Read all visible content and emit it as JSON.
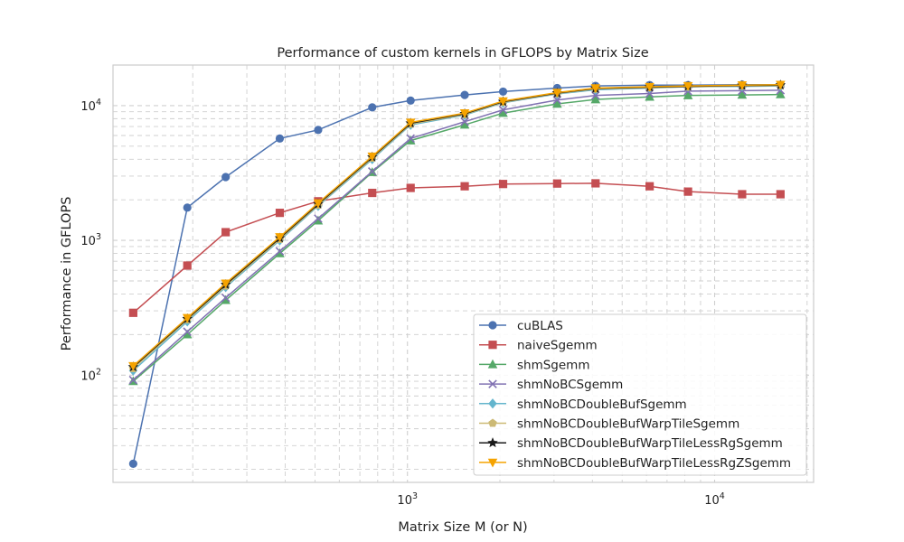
{
  "chart_data": {
    "type": "line",
    "title": "Performance of custom kernels in GFLOPS by Matrix Size",
    "xlabel": "Matrix Size M (or N)",
    "ylabel": "Performance in GFLOPS",
    "xscale": "log",
    "yscale": "log",
    "xlim": [
      110,
      21000
    ],
    "ylim": [
      16,
      20000
    ],
    "x_ticks": [
      {
        "value": 1000,
        "base": "10",
        "exp": "3"
      },
      {
        "value": 10000,
        "base": "10",
        "exp": "4"
      }
    ],
    "y_ticks": [
      {
        "value": 100,
        "base": "10",
        "exp": "2"
      },
      {
        "value": 1000,
        "base": "10",
        "exp": "3"
      },
      {
        "value": 10000,
        "base": "10",
        "exp": "4"
      }
    ],
    "grid": true,
    "legend_position": "lower-right",
    "x": [
      128,
      192,
      256,
      384,
      512,
      768,
      1024,
      1536,
      2048,
      3072,
      4096,
      6144,
      8192,
      12288,
      16384
    ],
    "series": [
      {
        "name": "cuBLAS",
        "color": "#4c72b0",
        "marker": "circle",
        "values": [
          22,
          1750,
          2950,
          5700,
          6600,
          9700,
          10900,
          12000,
          12700,
          13500,
          14000,
          14200,
          14200,
          14300,
          14300
        ]
      },
      {
        "name": "naiveSgemm",
        "color": "#c44e52",
        "marker": "square",
        "values": [
          290,
          650,
          1150,
          1600,
          1950,
          2250,
          2450,
          2520,
          2620,
          2640,
          2650,
          2520,
          2300,
          2200,
          2200
        ]
      },
      {
        "name": "shmSgemm",
        "color": "#55a868",
        "marker": "triangle-up",
        "values": [
          90,
          200,
          360,
          800,
          1400,
          3200,
          5500,
          7200,
          8800,
          10300,
          11100,
          11600,
          11900,
          12000,
          12100
        ]
      },
      {
        "name": "shmNoBCSgemm",
        "color": "#8172b2",
        "marker": "x",
        "values": [
          92,
          210,
          375,
          830,
          1450,
          3250,
          5700,
          7600,
          9300,
          11000,
          11900,
          12300,
          12800,
          12900,
          13000
        ]
      },
      {
        "name": "shmNoBCDoubleBufSgemm",
        "color": "#64b5cd",
        "marker": "diamond",
        "values": [
          108,
          250,
          450,
          1000,
          1800,
          4000,
          7200,
          8500,
          10500,
          12200,
          13100,
          13500,
          13800,
          13900,
          14000
        ]
      },
      {
        "name": "shmNoBCDoubleBufWarpTileSgemm",
        "color": "#ccb974",
        "marker": "pentagon",
        "values": [
          112,
          258,
          460,
          1020,
          1830,
          4080,
          7300,
          8600,
          10600,
          12300,
          13300,
          13600,
          13800,
          14000,
          14100
        ]
      },
      {
        "name": "shmNoBCDoubleBufWarpTileLessRgSgemm",
        "color": "#1a1a1a",
        "marker": "star",
        "values": [
          115,
          262,
          470,
          1040,
          1860,
          4150,
          7400,
          8700,
          10700,
          12400,
          13400,
          13700,
          13900,
          14100,
          14200
        ]
      },
      {
        "name": "shmNoBCDoubleBufWarpTileLessRgZSgemm",
        "color": "#f5a300",
        "marker": "triangle-down",
        "values": [
          117,
          266,
          480,
          1060,
          1890,
          4200,
          7500,
          8800,
          10800,
          12500,
          13500,
          13800,
          14000,
          14200,
          14300
        ]
      }
    ]
  }
}
